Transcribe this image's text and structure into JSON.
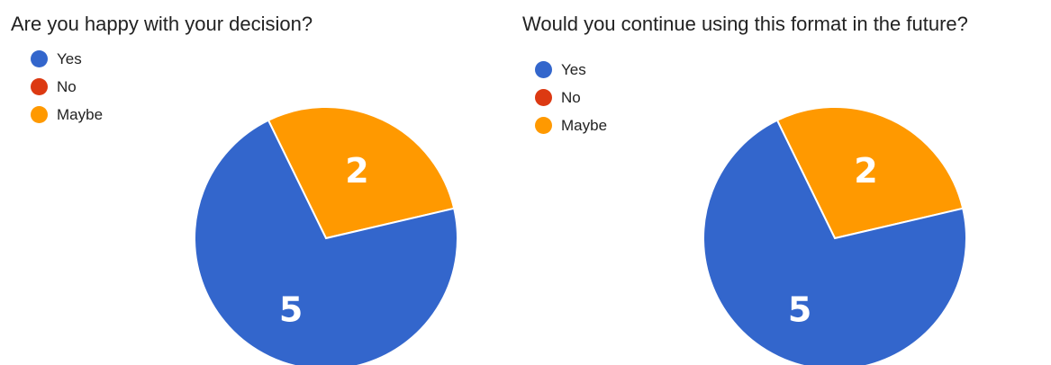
{
  "chart_data": [
    {
      "type": "pie",
      "title": "Are you happy with your decision?",
      "categories": [
        "Yes",
        "No",
        "Maybe"
      ],
      "values": [
        5,
        0,
        2
      ],
      "data_labels": [
        "5",
        "",
        "2"
      ],
      "colors": [
        "#3366cc",
        "#dc3912",
        "#ff9900"
      ],
      "legend": "top-left"
    },
    {
      "type": "pie",
      "title": "Would you continue using this format in the future?",
      "categories": [
        "Yes",
        "No",
        "Maybe"
      ],
      "values": [
        5,
        0,
        2
      ],
      "data_labels": [
        "5",
        "",
        "2"
      ],
      "colors": [
        "#3366cc",
        "#dc3912",
        "#ff9900"
      ],
      "legend": "top-left"
    }
  ]
}
